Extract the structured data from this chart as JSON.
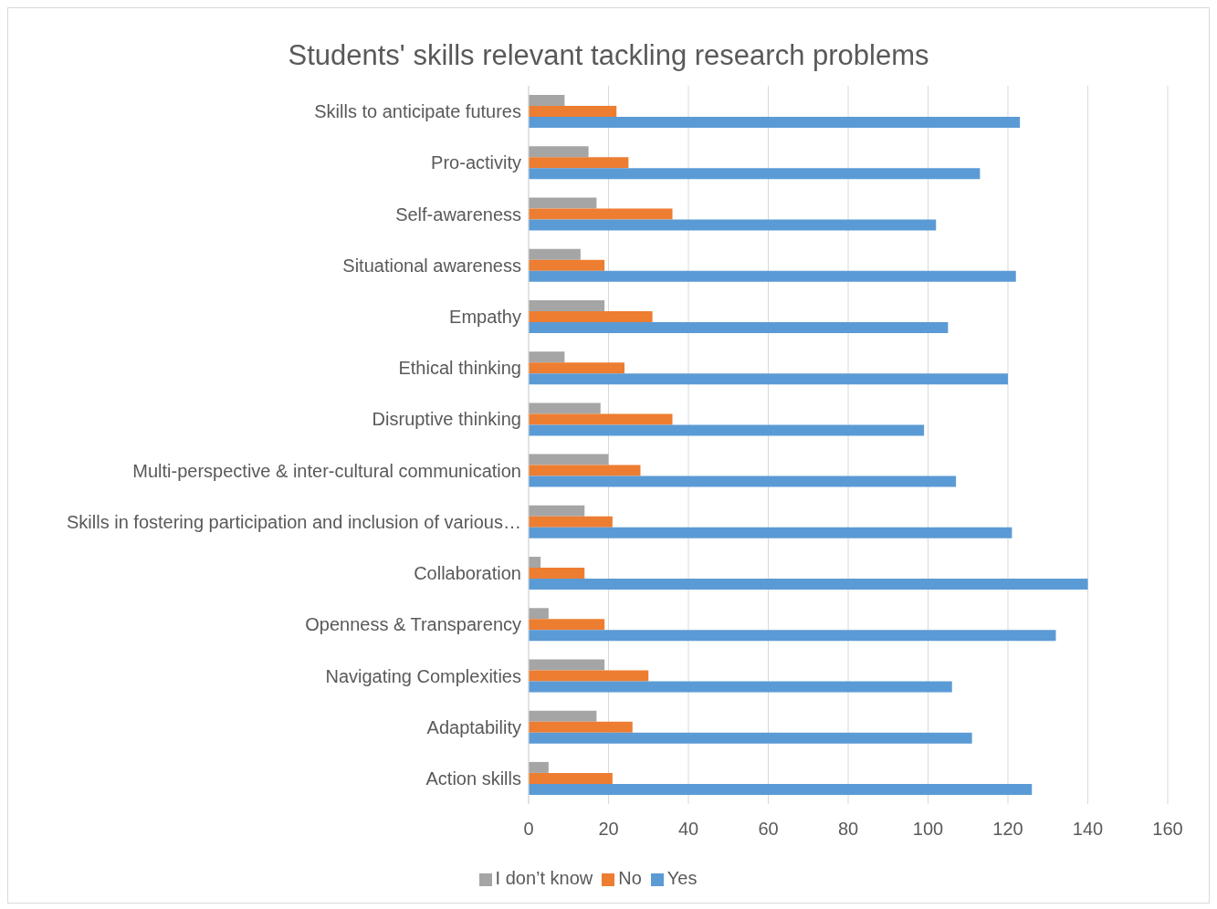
{
  "chart_data": {
    "type": "bar",
    "orientation": "horizontal",
    "title": "Students' skills relevant tackling research problems",
    "categories": [
      "Skills to anticipate futures",
      "Pro-activity",
      "Self-awareness",
      "Situational awareness",
      "Empathy",
      "Ethical thinking",
      "Disruptive thinking",
      "Multi-perspective & inter-cultural communication",
      "Skills in fostering participation and inclusion of various…",
      "Collaboration",
      "Openness & Transparency",
      "Navigating Complexities",
      "Adaptability",
      "Action skills"
    ],
    "series": [
      {
        "name": "I don’t know",
        "color": "#a5a5a5",
        "values": [
          9,
          15,
          17,
          13,
          19,
          9,
          18,
          20,
          14,
          3,
          5,
          19,
          17,
          5
        ]
      },
      {
        "name": "No",
        "color": "#ed7d31",
        "values": [
          22,
          25,
          36,
          19,
          31,
          24,
          36,
          28,
          21,
          14,
          19,
          30,
          26,
          21
        ]
      },
      {
        "name": "Yes",
        "color": "#5b9bd5",
        "values": [
          123,
          113,
          102,
          122,
          105,
          120,
          99,
          107,
          121,
          140,
          132,
          106,
          111,
          126
        ]
      }
    ],
    "xlim": [
      0,
      160
    ],
    "xticks": [
      0,
      20,
      40,
      60,
      80,
      100,
      120,
      140,
      160
    ],
    "grid": "x",
    "legend": "bottom"
  }
}
